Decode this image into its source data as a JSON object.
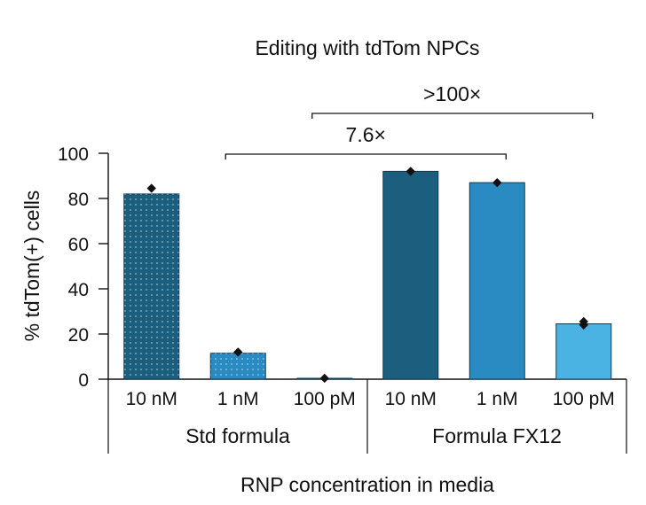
{
  "chart_data": {
    "type": "bar",
    "title": "Editing with tdTom NPCs",
    "ylabel": "% tdTom(+) cells",
    "xlabel": "RNP concentration in media",
    "ylim": [
      0,
      100
    ],
    "yticks": [
      "0",
      "20",
      "40",
      "60",
      "80",
      "100"
    ],
    "groups": [
      {
        "label": "Std formula",
        "categories": [
          "10 nM",
          "1 nM",
          "100 pM"
        ]
      },
      {
        "label": "Formula FX12",
        "categories": [
          "10 nM",
          "1 nM",
          "100 pM"
        ]
      }
    ],
    "bars": [
      {
        "group": 0,
        "category": "10 nM",
        "value": 82,
        "points": [
          84.5
        ],
        "color": "#1b5e7e",
        "dotted": true
      },
      {
        "group": 0,
        "category": "1 nM",
        "value": 11.5,
        "points": [
          12
        ],
        "color": "#2a8ac2",
        "dotted": true
      },
      {
        "group": 0,
        "category": "100 pM",
        "value": 0.4,
        "points": [
          0.4
        ],
        "color": "#4bb2e4",
        "dotted": true
      },
      {
        "group": 1,
        "category": "10 nM",
        "value": 92,
        "points": [
          92
        ],
        "color": "#1b5e7e",
        "dotted": false
      },
      {
        "group": 1,
        "category": "1 nM",
        "value": 87,
        "points": [
          87
        ],
        "color": "#2a8ac2",
        "dotted": false
      },
      {
        "group": 1,
        "category": "100 pM",
        "value": 24.5,
        "points": [
          24,
          25.5
        ],
        "color": "#4bb2e4",
        "dotted": false
      }
    ],
    "annotations": [
      {
        "label": "7.6×",
        "from_bar": 1,
        "to_bar": 4,
        "level": 1
      },
      {
        "label": ">100×",
        "from_bar": 2,
        "to_bar": 5,
        "level": 2
      }
    ]
  }
}
